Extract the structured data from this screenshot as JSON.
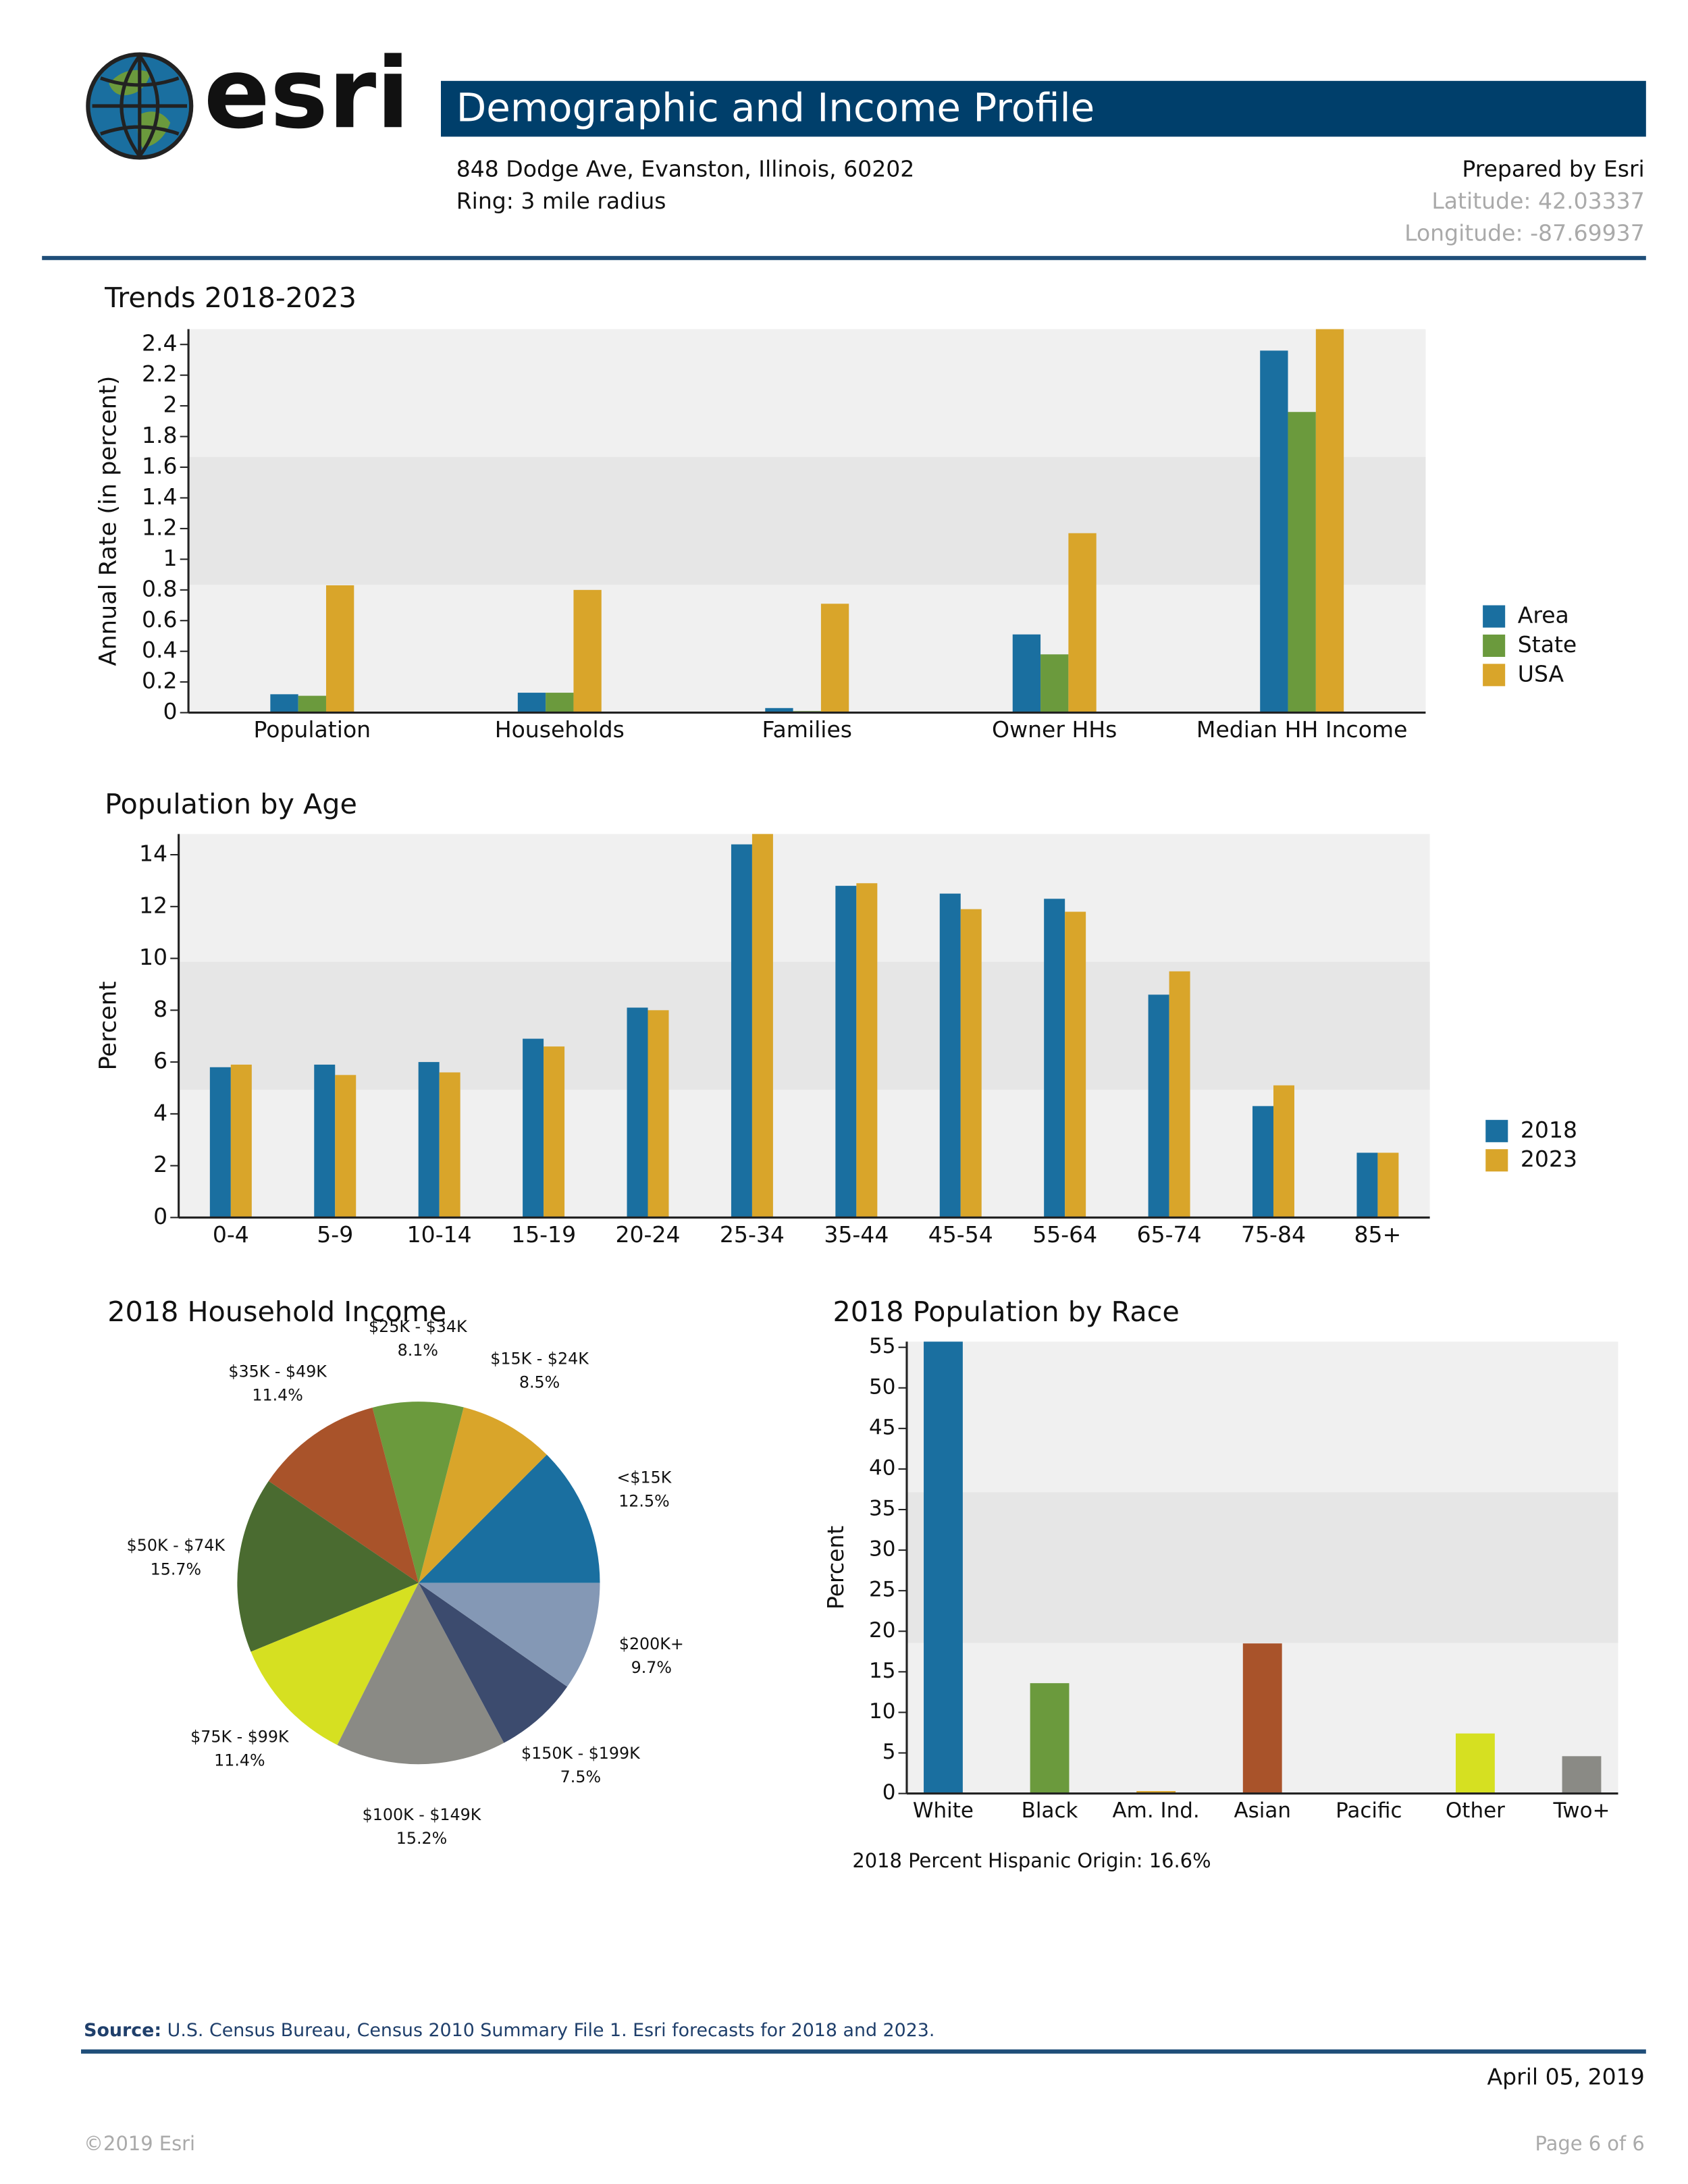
{
  "header": {
    "logo": "esri",
    "title": "Demographic and Income Profile",
    "address": "848 Dodge Ave, Evanston, Illinois, 60202",
    "ring": "Ring: 3 mile radius",
    "prepared_by": "Prepared by Esri",
    "latitude": "Latitude: 42.03337",
    "longitude": "Longitude: -87.69937"
  },
  "chart_data": [
    {
      "type": "bar",
      "title": "Trends 2018-2023",
      "y_label": "Annual Rate (in percent)",
      "categories": [
        "Population",
        "Households",
        "Families",
        "Owner HHs",
        "Median HH Income"
      ],
      "series": [
        {
          "name": "Area",
          "color": "#1a6fa0",
          "values": [
            0.12,
            0.13,
            0.03,
            0.51,
            2.36
          ]
        },
        {
          "name": "State",
          "color": "#6b9a3d",
          "values": [
            0.11,
            0.13,
            0.01,
            0.38,
            1.96
          ]
        },
        {
          "name": "USA",
          "color": "#d9a52a",
          "values": [
            0.83,
            0.8,
            0.71,
            1.17,
            2.5
          ]
        }
      ],
      "ylim": [
        0,
        2.5
      ],
      "yticks": [
        0,
        0.2,
        0.4,
        0.6,
        0.8,
        1,
        1.2,
        1.4,
        1.6,
        1.8,
        2,
        2.2,
        2.4
      ],
      "legend": "right"
    },
    {
      "type": "bar",
      "title": "Population by Age",
      "y_label": "Percent",
      "categories": [
        "0-4",
        "5-9",
        "10-14",
        "15-19",
        "20-24",
        "25-34",
        "35-44",
        "45-54",
        "55-64",
        "65-74",
        "75-84",
        "85+"
      ],
      "series": [
        {
          "name": "2018",
          "color": "#1a6fa0",
          "values": [
            5.8,
            5.9,
            6.0,
            6.9,
            8.1,
            14.4,
            12.8,
            12.5,
            12.3,
            8.6,
            4.3,
            2.5
          ]
        },
        {
          "name": "2023",
          "color": "#d9a52a",
          "values": [
            5.9,
            5.5,
            5.6,
            6.6,
            8.0,
            14.8,
            12.9,
            11.9,
            11.8,
            9.5,
            5.1,
            2.5
          ]
        }
      ],
      "ylim": [
        0,
        14.8
      ],
      "yticks": [
        0,
        2,
        4,
        6,
        8,
        10,
        12,
        14
      ],
      "legend": "right"
    },
    {
      "type": "pie",
      "title": "2018 Household Income",
      "categories": [
        "<$15K",
        "$15K - $24K",
        "$25K - $34K",
        "$35K - $49K",
        "$50K - $74K",
        "$75K - $99K",
        "$100K - $149K",
        "$150K - $199K",
        "$200K+"
      ],
      "values": [
        12.5,
        8.5,
        8.1,
        11.4,
        15.7,
        11.4,
        15.2,
        7.5,
        9.7
      ],
      "value_labels": [
        "12.5%",
        "8.5%",
        "8.1%",
        "11.4%",
        "15.7%",
        "11.4%",
        "15.2%",
        "7.5%",
        "9.7%"
      ],
      "colors": [
        "#1a6fa0",
        "#d9a52a",
        "#6b9a3d",
        "#a9532a",
        "#4a6b30",
        "#d6e021",
        "#8a8a85",
        "#3c4b6e",
        "#8498b5"
      ]
    },
    {
      "type": "bar",
      "title": "2018 Population by Race",
      "y_label": "Percent",
      "categories": [
        "White",
        "Black",
        "Am. Ind.",
        "Asian",
        "Pacific",
        "Other",
        "Two+"
      ],
      "values": [
        55.7,
        13.6,
        0.3,
        18.5,
        0.0,
        7.4,
        4.6
      ],
      "colors": [
        "#1a6fa0",
        "#6b9a3d",
        "#d9a52a",
        "#a9532a",
        "#3c4b6e",
        "#d6e021",
        "#8a8a85"
      ],
      "ylim": [
        0,
        55.7
      ],
      "yticks": [
        0,
        5,
        10,
        15,
        20,
        25,
        30,
        35,
        40,
        45,
        50,
        55
      ],
      "note": "2018 Percent Hispanic Origin: 16.6%"
    }
  ],
  "footer": {
    "source_label": "Source:",
    "source": "U.S. Census Bureau, Census 2010 Summary File 1.  Esri forecasts for 2018 and 2023.",
    "date": "April 05, 2019",
    "copyright": "©2019 Esri",
    "page": "Page 6 of 6"
  }
}
